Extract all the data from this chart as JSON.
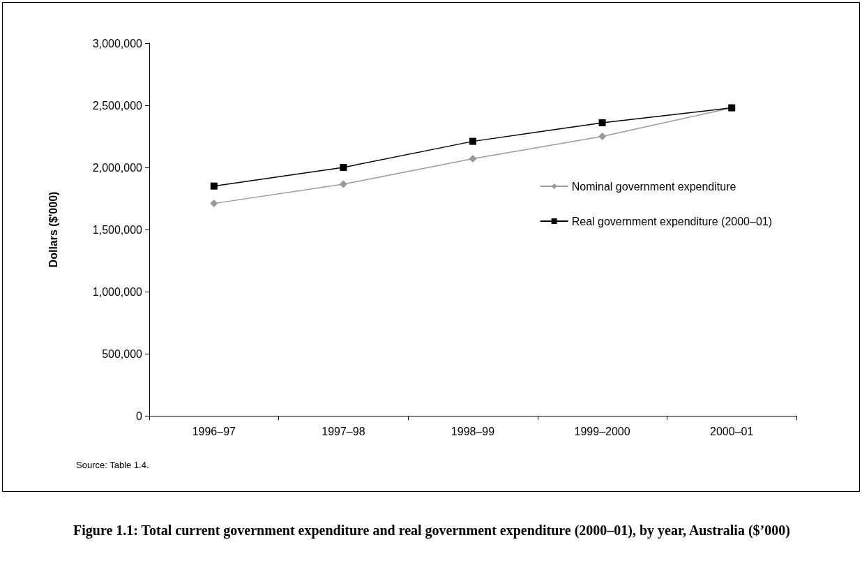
{
  "chart_data": {
    "type": "line",
    "title": "Figure 1.1: Total current government expenditure and real government expenditure (2000–01), by year, Australia ($’000)",
    "ylabel": "Dollars ($'000)",
    "annotations": [
      "Source: Table 1.4."
    ],
    "categories": [
      "1996–97",
      "1997–98",
      "1998–99",
      "1999–2000",
      "2000–01"
    ],
    "series": [
      {
        "name": "Nominal government expenditure",
        "color": "#999999",
        "marker": "diamond",
        "values": [
          1710000,
          1865000,
          2070000,
          2250000,
          2480000
        ]
      },
      {
        "name": "Real government expenditure (2000–01)",
        "color": "#000000",
        "marker": "square",
        "values": [
          1850000,
          2000000,
          2210000,
          2360000,
          2480000
        ]
      }
    ],
    "ylim": [
      0,
      3000000
    ],
    "yticks": [
      0,
      {
        "value": 500000,
        "label": "500,000"
      },
      {
        "value": 1000000,
        "label": "1,000,000"
      },
      {
        "value": 1500000,
        "label": "1,500,000"
      },
      {
        "value": 2000000,
        "label": "2,000,000"
      },
      {
        "value": 2500000,
        "label": "2,500,000"
      },
      {
        "value": 3000000,
        "label": "3,000,000"
      }
    ],
    "grid": false,
    "legend": "right",
    "line_style": "solid"
  }
}
